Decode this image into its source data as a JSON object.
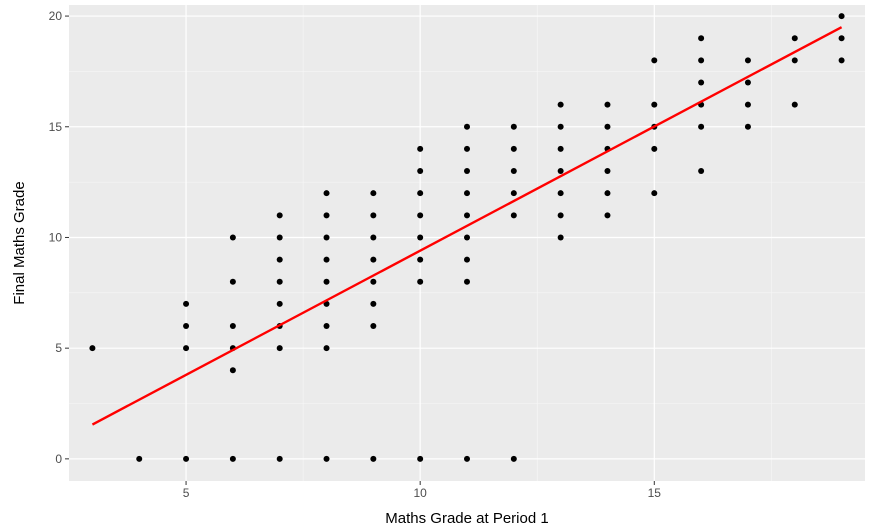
{
  "chart_data": {
    "type": "scatter",
    "title": "",
    "xlabel": "Maths Grade at Period 1",
    "ylabel": "Final Maths Grade",
    "xlim": [
      2.5,
      19.5
    ],
    "ylim": [
      -1,
      20.5
    ],
    "x_ticks": [
      5,
      10,
      15
    ],
    "y_ticks": [
      0,
      5,
      10,
      15,
      20
    ],
    "grid": true,
    "legend": "none",
    "colors": {
      "panel": "#ebebeb",
      "grid": "#ffffff",
      "points": "#000000",
      "fit_line": "#ff0000"
    },
    "points": [
      [
        3,
        5
      ],
      [
        4,
        0
      ],
      [
        5,
        0
      ],
      [
        5,
        5
      ],
      [
        5,
        6
      ],
      [
        5,
        7
      ],
      [
        6,
        0
      ],
      [
        6,
        4
      ],
      [
        6,
        5
      ],
      [
        6,
        6
      ],
      [
        6,
        8
      ],
      [
        6,
        10
      ],
      [
        7,
        0
      ],
      [
        7,
        5
      ],
      [
        7,
        6
      ],
      [
        7,
        7
      ],
      [
        7,
        8
      ],
      [
        7,
        9
      ],
      [
        7,
        10
      ],
      [
        7,
        11
      ],
      [
        8,
        0
      ],
      [
        8,
        5
      ],
      [
        8,
        6
      ],
      [
        8,
        7
      ],
      [
        8,
        8
      ],
      [
        8,
        9
      ],
      [
        8,
        10
      ],
      [
        8,
        11
      ],
      [
        8,
        12
      ],
      [
        9,
        0
      ],
      [
        9,
        6
      ],
      [
        9,
        7
      ],
      [
        9,
        8
      ],
      [
        9,
        9
      ],
      [
        9,
        10
      ],
      [
        9,
        11
      ],
      [
        9,
        12
      ],
      [
        10,
        0
      ],
      [
        10,
        8
      ],
      [
        10,
        9
      ],
      [
        10,
        10
      ],
      [
        10,
        11
      ],
      [
        10,
        12
      ],
      [
        10,
        13
      ],
      [
        10,
        14
      ],
      [
        11,
        0
      ],
      [
        11,
        8
      ],
      [
        11,
        9
      ],
      [
        11,
        10
      ],
      [
        11,
        11
      ],
      [
        11,
        12
      ],
      [
        11,
        13
      ],
      [
        11,
        14
      ],
      [
        11,
        15
      ],
      [
        12,
        0
      ],
      [
        12,
        11
      ],
      [
        12,
        12
      ],
      [
        12,
        13
      ],
      [
        12,
        14
      ],
      [
        12,
        15
      ],
      [
        13,
        10
      ],
      [
        13,
        11
      ],
      [
        13,
        12
      ],
      [
        13,
        13
      ],
      [
        13,
        14
      ],
      [
        13,
        15
      ],
      [
        13,
        16
      ],
      [
        14,
        11
      ],
      [
        14,
        12
      ],
      [
        14,
        13
      ],
      [
        14,
        14
      ],
      [
        14,
        15
      ],
      [
        14,
        16
      ],
      [
        15,
        12
      ],
      [
        15,
        14
      ],
      [
        15,
        15
      ],
      [
        15,
        16
      ],
      [
        15,
        18
      ],
      [
        16,
        13
      ],
      [
        16,
        15
      ],
      [
        16,
        16
      ],
      [
        16,
        17
      ],
      [
        16,
        18
      ],
      [
        16,
        19
      ],
      [
        17,
        15
      ],
      [
        17,
        16
      ],
      [
        17,
        17
      ],
      [
        17,
        18
      ],
      [
        18,
        16
      ],
      [
        18,
        18
      ],
      [
        18,
        19
      ],
      [
        19,
        18
      ],
      [
        19,
        19
      ],
      [
        19,
        20
      ]
    ],
    "fit_line": {
      "x": [
        3,
        19
      ],
      "y": [
        1.55,
        19.5
      ]
    }
  }
}
